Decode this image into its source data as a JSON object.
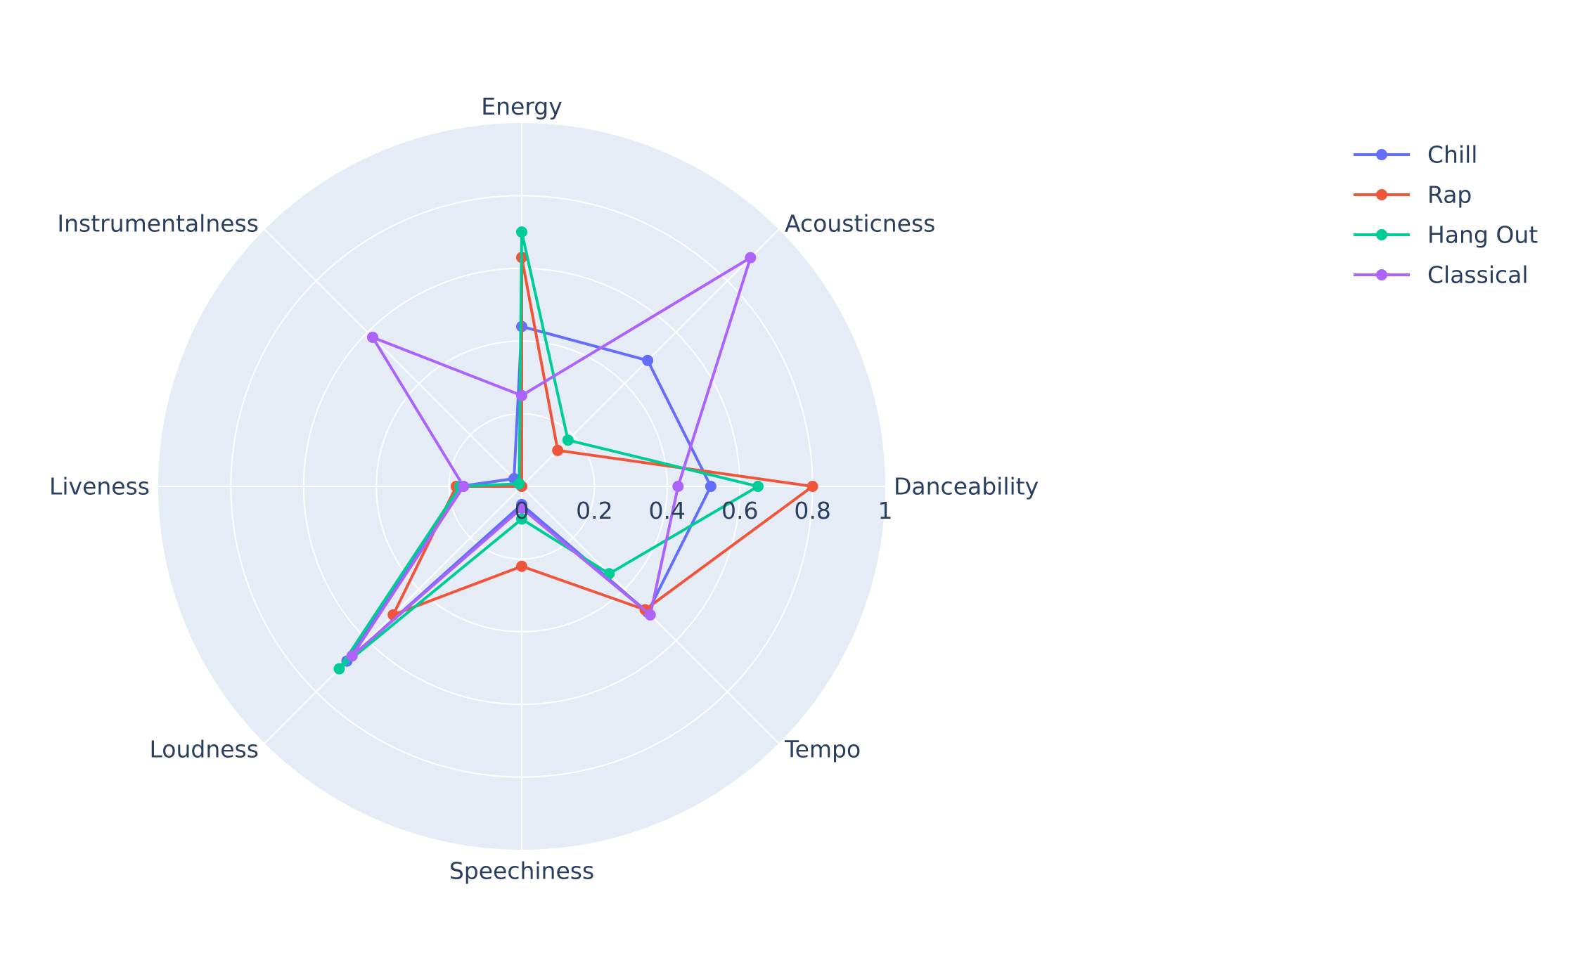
{
  "chart_data": {
    "type": "radar",
    "title": "",
    "axes": [
      "Danceability",
      "Acousticness",
      "Energy",
      "Instrumentalness",
      "Liveness",
      "Loudness",
      "Speechiness",
      "Tempo"
    ],
    "radial_range": [
      0,
      1
    ],
    "radial_ticks": [
      "0",
      "0.2",
      "0.4",
      "0.6",
      "0.8",
      "1"
    ],
    "radial_tick_values": [
      0,
      0.2,
      0.4,
      0.6,
      0.8,
      1
    ],
    "grid": true,
    "legend_position": "top-right",
    "background_color": "#e5ecf6",
    "series": [
      {
        "name": "Chill",
        "color": "#636efa",
        "values": [
          0.52,
          0.49,
          0.44,
          0.03,
          0.17,
          0.68,
          0.05,
          0.49
        ]
      },
      {
        "name": "Rap",
        "color": "#ef553b",
        "values": [
          0.8,
          0.14,
          0.63,
          0.0,
          0.18,
          0.5,
          0.22,
          0.48
        ]
      },
      {
        "name": "Hang Out",
        "color": "#00cc96",
        "values": [
          0.65,
          0.18,
          0.7,
          0.01,
          0.17,
          0.71,
          0.09,
          0.34
        ]
      },
      {
        "name": "Classical",
        "color": "#ab63fa",
        "values": [
          0.43,
          0.89,
          0.25,
          0.58,
          0.16,
          0.66,
          0.06,
          0.5
        ]
      }
    ]
  }
}
